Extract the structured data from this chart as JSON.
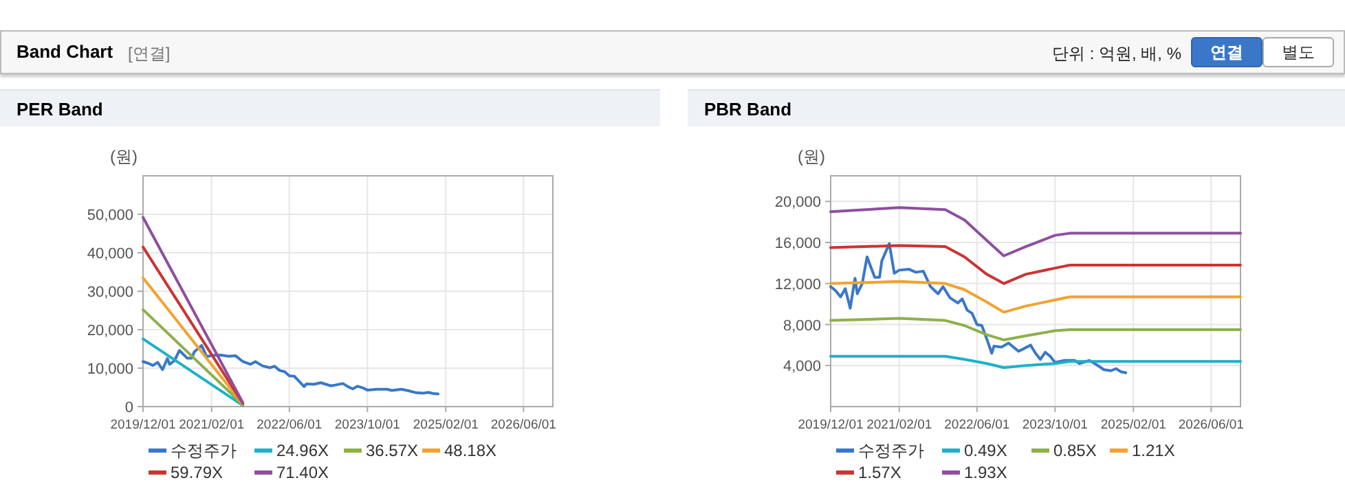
{
  "chart_data": [
    {
      "type": "other",
      "title": "Band Chart",
      "annotations": [
        "[연결]",
        "단위 : 억원, 배, %",
        "연결",
        "별도"
      ]
    },
    {
      "type": "line",
      "title": "PER Band",
      "ylabel": "(원)",
      "xlim": [
        "2019-12-01",
        "2026-12-01"
      ],
      "xticks": [
        {
          "value": "2019-12-01",
          "label": "2019/12/01"
        },
        {
          "value": "2021-02-01",
          "label": "2021/02/01"
        },
        {
          "value": "2022-06-01",
          "label": "2022/06/01"
        },
        {
          "value": "2023-10-01",
          "label": "2023/10/01"
        },
        {
          "value": "2025-02-01",
          "label": "2025/02/01"
        },
        {
          "value": "2026-06-01",
          "label": "2026/06/01"
        }
      ],
      "ylim": [
        0,
        60000
      ],
      "yticks": [
        {
          "value": 0,
          "label": "0"
        },
        {
          "value": 10000,
          "label": "10,000"
        },
        {
          "value": 20000,
          "label": "20,000"
        },
        {
          "value": 30000,
          "label": "30,000"
        },
        {
          "value": 40000,
          "label": "40,000"
        },
        {
          "value": 50000,
          "label": "50,000"
        }
      ],
      "grid": true,
      "legend": "bottom",
      "marker": "none",
      "line_style": "solid",
      "series": [
        {
          "name": "수정주가",
          "color": "#3a77c8",
          "x": [
            "2019-12-01",
            "2020-01-01",
            "2020-02-01",
            "2020-03-01",
            "2020-04-01",
            "2020-05-01",
            "2020-05-15",
            "2020-06-15",
            "2020-07-15",
            "2020-09-01",
            "2020-10-01",
            "2020-10-15",
            "2020-12-01",
            "2021-01-01",
            "2021-02-01",
            "2021-04-01",
            "2021-05-15",
            "2021-07-01",
            "2021-08-15",
            "2021-10-01",
            "2021-11-01",
            "2021-12-15",
            "2022-02-01",
            "2022-03-01",
            "2022-04-01",
            "2022-05-01",
            "2022-06-01",
            "2022-07-01",
            "2022-08-01",
            "2022-09-01",
            "2022-09-15",
            "2022-11-01",
            "2022-12-15",
            "2023-02-15",
            "2023-03-15",
            "2023-05-01",
            "2023-06-01",
            "2023-07-01",
            "2023-08-01",
            "2023-09-01",
            "2023-10-01",
            "2023-12-01",
            "2024-02-01",
            "2024-03-01",
            "2024-05-01",
            "2024-06-15",
            "2024-08-01",
            "2024-09-15",
            "2024-10-15",
            "2024-11-15",
            "2024-12-15"
          ],
          "values": [
            11700,
            11300,
            10700,
            11500,
            9600,
            12500,
            11000,
            12000,
            14600,
            12600,
            12600,
            14200,
            15900,
            13000,
            13300,
            13400,
            13100,
            13200,
            11700,
            11000,
            11700,
            10600,
            10100,
            10500,
            9400,
            9100,
            8000,
            7900,
            6600,
            5200,
            5900,
            5800,
            6200,
            5400,
            5600,
            6000,
            5200,
            4600,
            5300,
            4900,
            4300,
            4500,
            4500,
            4200,
            4500,
            4100,
            3600,
            3500,
            3700,
            3400,
            3300
          ]
        },
        {
          "name": "24.96X",
          "color": "#1eb1c8",
          "x": [
            "2019-12-01",
            "2021-08-15"
          ],
          "values": [
            17600,
            300
          ]
        },
        {
          "name": "36.57X",
          "color": "#8db04a",
          "x": [
            "2019-12-01",
            "2021-08-15"
          ],
          "values": [
            25200,
            500
          ]
        },
        {
          "name": "48.18X",
          "color": "#f0a330",
          "x": [
            "2019-12-01",
            "2021-08-15"
          ],
          "values": [
            33500,
            600
          ]
        },
        {
          "name": "59.79X",
          "color": "#cc3333",
          "x": [
            "2019-12-01",
            "2021-08-15"
          ],
          "values": [
            41500,
            800
          ]
        },
        {
          "name": "71.40X",
          "color": "#8e4f9f",
          "x": [
            "2019-12-01",
            "2021-08-15"
          ],
          "values": [
            49200,
            1000
          ]
        }
      ]
    },
    {
      "type": "line",
      "title": "PBR Band",
      "ylabel": "(원)",
      "xlim": [
        "2019-12-01",
        "2026-12-01"
      ],
      "xticks": [
        {
          "value": "2019-12-01",
          "label": "2019/12/01"
        },
        {
          "value": "2021-02-01",
          "label": "2021/02/01"
        },
        {
          "value": "2022-06-01",
          "label": "2022/06/01"
        },
        {
          "value": "2023-10-01",
          "label": "2023/10/01"
        },
        {
          "value": "2025-02-01",
          "label": "2025/02/01"
        },
        {
          "value": "2026-06-01",
          "label": "2026/06/01"
        }
      ],
      "ylim": [
        0,
        22500
      ],
      "yticks": [
        {
          "value": 4000,
          "label": "4,000"
        },
        {
          "value": 8000,
          "label": "8,000"
        },
        {
          "value": 12000,
          "label": "12,000"
        },
        {
          "value": 16000,
          "label": "16,000"
        },
        {
          "value": 20000,
          "label": "20,000"
        }
      ],
      "grid": true,
      "legend": "bottom",
      "marker": "none",
      "line_style": "solid",
      "series": [
        {
          "name": "수정주가",
          "color": "#3a77c8",
          "x": [
            "2019-12-01",
            "2020-01-01",
            "2020-02-01",
            "2020-03-01",
            "2020-04-01",
            "2020-05-01",
            "2020-05-15",
            "2020-06-15",
            "2020-07-15",
            "2020-09-01",
            "2020-10-01",
            "2020-10-15",
            "2020-12-01",
            "2021-01-01",
            "2021-02-01",
            "2021-04-01",
            "2021-05-15",
            "2021-07-01",
            "2021-08-15",
            "2021-10-01",
            "2021-11-01",
            "2021-12-15",
            "2022-02-01",
            "2022-03-01",
            "2022-04-01",
            "2022-05-01",
            "2022-06-01",
            "2022-07-01",
            "2022-08-01",
            "2022-09-01",
            "2022-09-15",
            "2022-11-01",
            "2022-12-15",
            "2023-02-15",
            "2023-03-15",
            "2023-05-01",
            "2023-06-01",
            "2023-07-01",
            "2023-08-01",
            "2023-09-01",
            "2023-10-01",
            "2023-12-01",
            "2024-02-01",
            "2024-03-01",
            "2024-05-01",
            "2024-06-15",
            "2024-08-01",
            "2024-09-15",
            "2024-10-15",
            "2024-11-15",
            "2024-12-15"
          ],
          "values": [
            11700,
            11300,
            10700,
            11500,
            9600,
            12500,
            11000,
            12000,
            14600,
            12600,
            12600,
            14200,
            15900,
            13000,
            13300,
            13400,
            13100,
            13200,
            11700,
            11000,
            11700,
            10600,
            10100,
            10500,
            9400,
            9100,
            8000,
            7900,
            6600,
            5200,
            5900,
            5800,
            6200,
            5400,
            5600,
            6000,
            5200,
            4600,
            5300,
            4900,
            4300,
            4500,
            4500,
            4200,
            4500,
            4100,
            3600,
            3500,
            3700,
            3400,
            3300
          ]
        },
        {
          "name": "0.49X",
          "color": "#1eb1c8",
          "x": [
            "2019-12-01",
            "2021-02-01",
            "2021-11-15",
            "2022-03-15",
            "2022-08-01",
            "2022-11-15",
            "2023-04-01",
            "2023-10-01",
            "2024-01-01",
            "2026-12-01"
          ],
          "values": [
            4900,
            4900,
            4900,
            4600,
            4200,
            3800,
            4000,
            4200,
            4400,
            4400
          ]
        },
        {
          "name": "0.85X",
          "color": "#8db04a",
          "x": [
            "2019-12-01",
            "2021-02-01",
            "2021-11-15",
            "2022-03-15",
            "2022-08-01",
            "2022-11-15",
            "2023-04-01",
            "2023-10-01",
            "2024-01-01",
            "2026-12-01"
          ],
          "values": [
            8400,
            8600,
            8400,
            7900,
            7000,
            6500,
            6900,
            7400,
            7500,
            7500
          ]
        },
        {
          "name": "1.21X",
          "color": "#f0a330",
          "x": [
            "2019-12-01",
            "2021-02-01",
            "2021-11-15",
            "2022-03-15",
            "2022-08-01",
            "2022-11-15",
            "2023-04-01",
            "2023-10-01",
            "2024-01-01",
            "2026-12-01"
          ],
          "values": [
            12000,
            12200,
            12000,
            11400,
            10200,
            9200,
            9800,
            10400,
            10700,
            10700
          ]
        },
        {
          "name": "1.57X",
          "color": "#cc3333",
          "x": [
            "2019-12-01",
            "2021-02-01",
            "2021-11-15",
            "2022-03-15",
            "2022-08-01",
            "2022-11-15",
            "2023-04-01",
            "2023-10-01",
            "2024-01-01",
            "2026-12-01"
          ],
          "values": [
            15500,
            15700,
            15600,
            14600,
            12900,
            12000,
            12900,
            13500,
            13800,
            13800
          ]
        },
        {
          "name": "1.93X",
          "color": "#8e4f9f",
          "x": [
            "2019-12-01",
            "2021-02-01",
            "2021-11-15",
            "2022-03-15",
            "2022-08-01",
            "2022-11-15",
            "2023-04-01",
            "2023-10-01",
            "2024-01-01",
            "2026-12-01"
          ],
          "values": [
            19000,
            19400,
            19200,
            18200,
            16200,
            14700,
            15600,
            16700,
            16900,
            16900
          ]
        }
      ]
    }
  ]
}
